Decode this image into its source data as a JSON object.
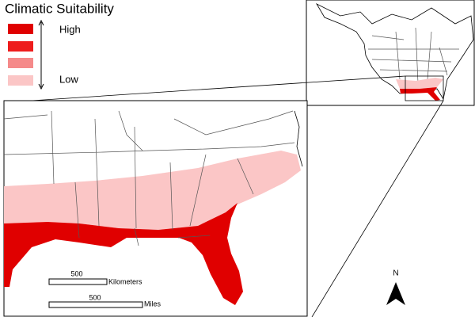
{
  "legend": {
    "title": "Climatic Suitability",
    "high_label": "High",
    "low_label": "Low",
    "colors": [
      "#e00000",
      "#ee1c1c",
      "#f58a8a",
      "#fbc6c6"
    ]
  },
  "scale_bars": [
    {
      "value_label": "500",
      "unit": "Kilometers"
    },
    {
      "value_label": "500",
      "unit": "Miles"
    }
  ],
  "north_arrow": {
    "label": "N"
  }
}
